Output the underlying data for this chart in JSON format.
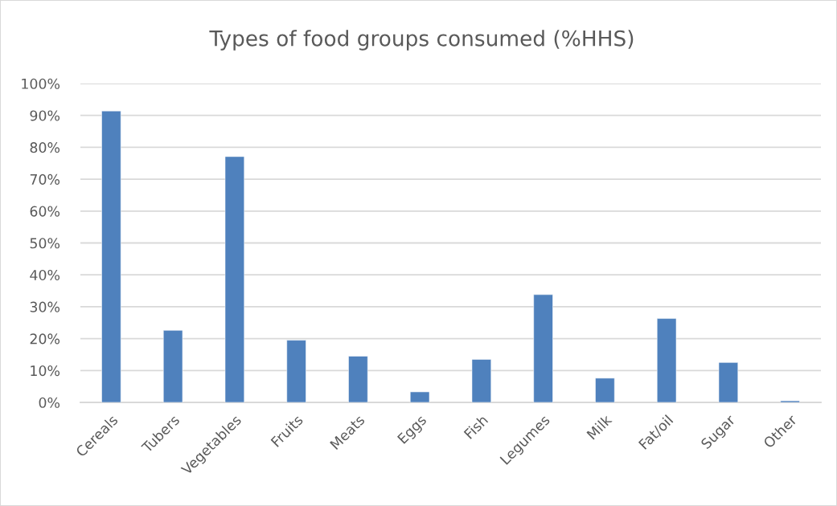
{
  "chart_data": {
    "type": "bar",
    "title": "Types of food groups consumed (%HHS)",
    "categories": [
      "Cereals",
      "Tubers",
      "Vegetables",
      "Fruits",
      "Meats",
      "Eggs",
      "Fish",
      "Legumes",
      "Milk",
      "Fat/oil",
      "Sugar",
      "Other"
    ],
    "values": [
      91.4,
      22.6,
      77.1,
      19.5,
      14.5,
      3.3,
      13.5,
      33.8,
      7.6,
      26.3,
      12.5,
      0.5
    ],
    "color": "#4f81bd",
    "ylim": [
      0,
      100
    ],
    "yticks": [
      {
        "value": 0,
        "label": "0%"
      },
      {
        "value": 10,
        "label": "10%"
      },
      {
        "value": 20,
        "label": "20%"
      },
      {
        "value": 30,
        "label": "30%"
      },
      {
        "value": 40,
        "label": "40%"
      },
      {
        "value": 50,
        "label": "50%"
      },
      {
        "value": 60,
        "label": "60%"
      },
      {
        "value": 70,
        "label": "70%"
      },
      {
        "value": 80,
        "label": "80%"
      },
      {
        "value": 90,
        "label": "90%"
      },
      {
        "value": 100,
        "label": "100%"
      }
    ],
    "grid": "y"
  }
}
